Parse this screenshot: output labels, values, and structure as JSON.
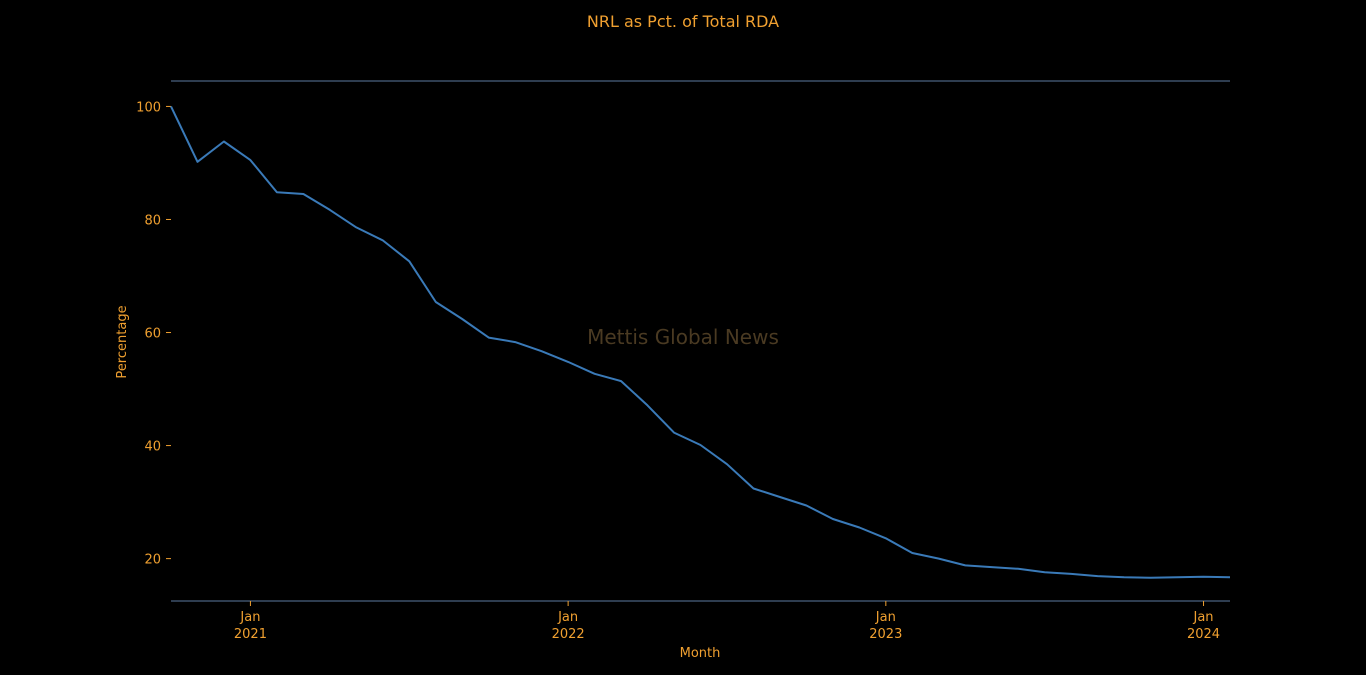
{
  "chart_data": {
    "type": "line",
    "title": "NRL as Pct. of Total RDA",
    "xlabel": "Month",
    "ylabel": "Percentage",
    "watermark": "Mettis Global News",
    "x_ticks": [
      {
        "date": "2021-01",
        "month": "Jan",
        "year": "2021"
      },
      {
        "date": "2022-01",
        "month": "Jan",
        "year": "2022"
      },
      {
        "date": "2023-01",
        "month": "Jan",
        "year": "2023"
      },
      {
        "date": "2024-01",
        "month": "Jan",
        "year": "2024"
      }
    ],
    "y_ticks": [
      20,
      40,
      60,
      80,
      100
    ],
    "xlim": [
      "2020-10",
      "2024-02"
    ],
    "ylim": [
      12.5,
      104.5
    ],
    "grid": false,
    "colors": {
      "background": "#000000",
      "text": "#f0a030",
      "line": "#3a7ab8",
      "spine": "#5b7aa0",
      "watermark": "#4a3a22"
    },
    "series": [
      {
        "x": [
          "2020-10",
          "2020-11",
          "2020-12",
          "2021-01",
          "2021-02",
          "2021-03",
          "2021-04",
          "2021-05",
          "2021-06",
          "2021-07",
          "2021-08",
          "2021-09",
          "2021-10",
          "2021-11",
          "2021-12",
          "2022-01",
          "2022-02",
          "2022-03",
          "2022-04",
          "2022-05",
          "2022-06",
          "2022-07",
          "2022-08",
          "2022-09",
          "2022-10",
          "2022-11",
          "2022-12",
          "2023-01",
          "2023-02",
          "2023-03",
          "2023-04",
          "2023-05",
          "2023-06",
          "2023-07",
          "2023-08",
          "2023-09",
          "2023-10",
          "2023-11",
          "2023-12",
          "2024-01",
          "2024-02"
        ],
        "y": [
          100,
          90.2,
          93.8,
          90.5,
          84.8,
          84.5,
          81.7,
          78.6,
          76.3,
          72.6,
          65.4,
          62.4,
          59.1,
          58.3,
          56.7,
          54.8,
          52.7,
          51.4,
          47.1,
          42.3,
          40.1,
          36.7,
          32.4,
          30.9,
          29.4,
          27.0,
          25.5,
          23.6,
          21.0,
          20.0,
          18.8,
          18.5,
          18.2,
          17.6,
          17.3,
          16.9,
          16.7,
          16.6,
          16.7,
          16.8,
          16.7
        ]
      }
    ]
  }
}
